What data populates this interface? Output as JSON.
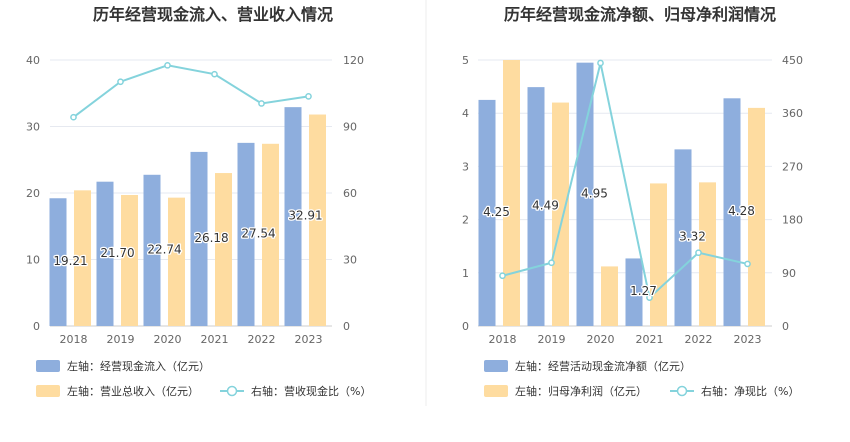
{
  "colors": {
    "bar_blue": "#8eaedd",
    "bar_orange": "#fedca0",
    "line": "#84d3dc",
    "grid": "#e6e9f0",
    "axis_text": "#666666",
    "title": "#333333",
    "divider": "#eeeeee"
  },
  "chart_data": [
    {
      "type": "bar",
      "title": "历年经营现金流入、营业收入情况",
      "categories": [
        "2018",
        "2019",
        "2020",
        "2021",
        "2022",
        "2023"
      ],
      "y_left": {
        "ylim": [
          0,
          40
        ],
        "ticks": [
          "0",
          "10",
          "20",
          "30",
          "40"
        ]
      },
      "y_right": {
        "ylim": [
          0,
          120
        ],
        "ticks": [
          "0",
          "30",
          "60",
          "90",
          "120"
        ]
      },
      "series": [
        {
          "name": "左轴：经营现金流入（亿元）",
          "type": "bar",
          "axis": "left",
          "color": "#8eaedd",
          "values": [
            19.21,
            21.7,
            22.74,
            26.18,
            27.54,
            32.91
          ],
          "labels": [
            "19.21",
            "21.70",
            "22.74",
            "26.18",
            "27.54",
            "32.91"
          ]
        },
        {
          "name": "左轴：营业总收入（亿元）",
          "type": "bar",
          "axis": "left",
          "color": "#fedca0",
          "values": [
            20.4,
            19.7,
            19.3,
            23.0,
            27.4,
            31.8
          ]
        },
        {
          "name": "右轴：营收现金比（%）",
          "type": "line",
          "axis": "right",
          "color": "#84d3dc",
          "values": [
            94.2,
            110.2,
            117.6,
            113.6,
            100.4,
            103.6
          ]
        }
      ]
    },
    {
      "type": "bar",
      "title": "历年经营现金流净额、归母净利润情况",
      "categories": [
        "2018",
        "2019",
        "2020",
        "2021",
        "2022",
        "2023"
      ],
      "y_left": {
        "ylim": [
          0,
          5
        ],
        "ticks": [
          "0",
          "1",
          "2",
          "3",
          "4",
          "5"
        ]
      },
      "y_right": {
        "ylim": [
          0,
          450
        ],
        "ticks": [
          "0",
          "90",
          "180",
          "270",
          "360",
          "450"
        ]
      },
      "series": [
        {
          "name": "左轴：经营活动现金流净额（亿元）",
          "type": "bar",
          "axis": "left",
          "color": "#8eaedd",
          "values": [
            4.25,
            4.49,
            4.95,
            1.27,
            3.32,
            4.28
          ],
          "labels": [
            "4.25",
            "4.49",
            "4.95",
            "1.27",
            "3.32",
            "4.28"
          ]
        },
        {
          "name": "左轴：归母净利润（亿元）",
          "type": "bar",
          "axis": "left",
          "color": "#fedca0",
          "values": [
            5.0,
            4.2,
            1.12,
            2.68,
            2.7,
            4.1
          ]
        },
        {
          "name": "右轴：净现比（%）",
          "type": "line",
          "axis": "right",
          "color": "#84d3dc",
          "values": [
            85,
            107,
            445,
            48,
            124,
            105
          ]
        }
      ]
    }
  ]
}
